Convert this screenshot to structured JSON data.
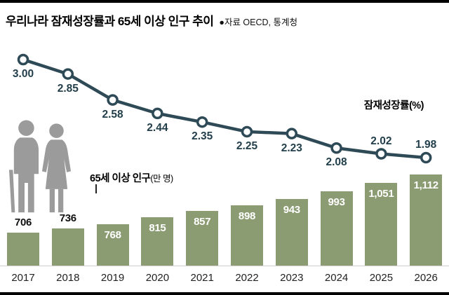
{
  "header": {
    "title": "우리나라 잠재성장률과 65세 이상 인구 추이",
    "source": "●자료 OECD, 통계청"
  },
  "chart_data": {
    "type": "combo",
    "title": "우리나라 잠재성장률과 65세 이상 인구 추이",
    "xlabel": "",
    "ylabel": "",
    "categories": [
      "2017",
      "2018",
      "2019",
      "2020",
      "2021",
      "2022",
      "2023",
      "2024",
      "2025",
      "2026"
    ],
    "series": [
      {
        "name": "잠재성장률(%)",
        "type": "line",
        "values": [
          3.0,
          2.85,
          2.58,
          2.44,
          2.35,
          2.25,
          2.23,
          2.08,
          2.02,
          1.98
        ]
      },
      {
        "name": "65세 이상 인구(만 명)",
        "type": "bar",
        "values": [
          706,
          736,
          768,
          815,
          857,
          898,
          943,
          993,
          1051,
          1112
        ]
      }
    ],
    "line_labels": [
      "3.00",
      "2.85",
      "2.58",
      "2.44",
      "2.35",
      "2.25",
      "2.23",
      "2.08",
      "2.02",
      "1.98"
    ],
    "bar_labels": [
      "706",
      "736",
      "768",
      "815",
      "857",
      "898",
      "943",
      "993",
      "1,051",
      "1,112"
    ],
    "annotations": {
      "line": "잠재성장률(%)",
      "bar_main": "65세 이상 인구",
      "bar_unit": "(만 명)"
    },
    "colors": {
      "bar": "#8b9c72",
      "line": "#2e4a56",
      "marker_fill": "#ffffff",
      "icon_gray": "#9b9b9b"
    },
    "legend_position": "inline-annotations",
    "grid": false
  }
}
